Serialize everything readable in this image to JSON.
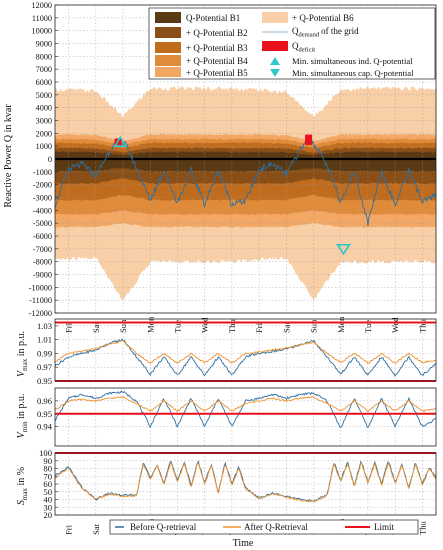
{
  "chart_data": [
    {
      "type": "area",
      "ylabel": "Reactive Power Q in kvar",
      "ylim": [
        -12000,
        12000
      ],
      "yticks": [
        12000,
        11000,
        10000,
        9000,
        8000,
        7000,
        6000,
        5000,
        4000,
        3000,
        2000,
        1000,
        0,
        -1000,
        -2000,
        -3000,
        -4000,
        -5000,
        -6000,
        -7000,
        -8000,
        -9000,
        -10000,
        -11000,
        -12000
      ],
      "ytick_labels": [
        "12000",
        "11000",
        "10000",
        "9000",
        "8000",
        "7000",
        "6000",
        "5000",
        "4000",
        "3000",
        "2000",
        "1000",
        "0",
        "-1000",
        "-2000",
        "-3000",
        "-4000",
        "-5000",
        "-6000",
        "-7000",
        "-8000",
        "-9000",
        "-10000",
        "-11000",
        "-12000"
      ],
      "xlim": [
        0,
        14
      ],
      "x_days": [
        "Fri",
        "Sat",
        "Sun",
        "Mon",
        "Tue",
        "Wed",
        "Thu",
        "Fri",
        "Sat",
        "Sun",
        "Mon",
        "Tue",
        "Wed",
        "Thu",
        "Fri"
      ],
      "grid": true,
      "legend_position": "top-right",
      "legend": [
        "Q-Potential B1",
        "+ Q-Potential B2",
        "+ Q-Potential B3",
        "+ Q-Potential B4",
        "+ Q-Potential B5",
        "+ Q-Potential B6",
        "Q",
        "demand",
        "of the grid",
        "Q",
        "deficit",
        "Min. simultaneous ind. Q-potential",
        "Min. simultaneous cap. Q-potential"
      ],
      "colors": {
        "b1": "#5a3a14",
        "b2": "#8a4f17",
        "b3": "#c06c1e",
        "b4": "#e08b3a",
        "b5": "#f2a764",
        "b6": "#f8cfa6",
        "demand": "#2f6f9f",
        "deficit": "#e8101a",
        "marker": "#2ec8c8"
      },
      "series": [
        {
          "name": "Q-Potential B1",
          "upper": [
            550,
            530,
            300,
            550,
            550,
            550,
            550,
            550,
            520,
            300,
            550,
            550,
            550,
            550
          ],
          "lower": [
            -950,
            -950,
            -700,
            -950,
            -950,
            -950,
            -950,
            -950,
            -950,
            -700,
            -950,
            -950,
            -950,
            -950
          ]
        },
        {
          "name": "+ Q-Potential B2",
          "upper": [
            850,
            820,
            500,
            850,
            850,
            850,
            850,
            850,
            820,
            500,
            850,
            850,
            850,
            850
          ],
          "lower": [
            -1900,
            -1900,
            -1500,
            -1900,
            -1900,
            -1900,
            -1900,
            -1900,
            -1900,
            -1500,
            -1900,
            -1900,
            -1900,
            -1900
          ]
        },
        {
          "name": "+ Q-Potential B3",
          "upper": [
            1250,
            1200,
            850,
            1250,
            1250,
            1250,
            1250,
            1250,
            1200,
            850,
            1250,
            1250,
            1250,
            1250
          ],
          "lower": [
            -3200,
            -3200,
            -2800,
            -3200,
            -3200,
            -3200,
            -3200,
            -3200,
            -3200,
            -2800,
            -3200,
            -3200,
            -3200,
            -3200
          ]
        },
        {
          "name": "+ Q-Potential B4",
          "upper": [
            1550,
            1500,
            1100,
            1550,
            1550,
            1550,
            1550,
            1550,
            1500,
            1100,
            1550,
            1550,
            1550,
            1550
          ],
          "lower": [
            -4300,
            -4300,
            -4000,
            -4300,
            -4300,
            -4300,
            -4300,
            -4300,
            -4300,
            -4000,
            -4300,
            -4300,
            -4300,
            -4300
          ]
        },
        {
          "name": "+ Q-Potential B5",
          "upper": [
            1900,
            1850,
            1400,
            1900,
            1900,
            1900,
            1900,
            1900,
            1850,
            1400,
            1900,
            1900,
            1900,
            1900
          ],
          "lower": [
            -5300,
            -5300,
            -5000,
            -5300,
            -5300,
            -5300,
            -5300,
            -5300,
            -5300,
            -5000,
            -5300,
            -5300,
            -5300,
            -5300
          ]
        },
        {
          "name": "+ Q-Potential B6",
          "upper": [
            5400,
            5300,
            3300,
            5500,
            5500,
            5500,
            5500,
            5400,
            5200,
            3300,
            5400,
            5500,
            5500,
            5500
          ],
          "lower": [
            -7800,
            -7700,
            -11000,
            -8000,
            -8000,
            -8000,
            -8000,
            -7800,
            -7700,
            -11000,
            -8000,
            -8000,
            -8000,
            -8000
          ]
        },
        {
          "name": "Qdemand of the grid",
          "x": [
            0,
            0.5,
            1,
            1.5,
            2,
            2.3,
            2.6,
            3,
            3.5,
            4,
            4.5,
            5,
            5.5,
            6,
            6.5,
            7,
            7.5,
            8,
            8.5,
            9,
            9.3,
            9.6,
            10,
            10.5,
            11,
            11.5,
            12,
            12.5,
            13,
            13.5,
            14
          ],
          "values": [
            -3600,
            -800,
            -400,
            -1300,
            600,
            1400,
            1100,
            -700,
            -3200,
            -900,
            -3400,
            -900,
            -3500,
            -900,
            -3500,
            -3300,
            -800,
            -400,
            -1200,
            700,
            1500,
            1000,
            -600,
            -3300,
            -900,
            -5000,
            -900,
            -3600,
            -800,
            -3400,
            -2800
          ]
        },
        {
          "name": "Qdeficit",
          "x": [
            2.3,
            9.3
          ],
          "values": [
            1600,
            1900
          ]
        },
        {
          "name": "Min. simultaneous ind. Q-potential",
          "x": [
            2.4
          ],
          "values": [
            1300
          ]
        },
        {
          "name": "Min. simultaneous cap. Q-potential",
          "x": [
            10.6
          ],
          "values": [
            -7000
          ]
        }
      ]
    },
    {
      "type": "line",
      "ylabel": "V",
      "ylabel_sub": "max",
      "ylabel_unit": " in p.u.",
      "ylim": [
        0.95,
        1.04
      ],
      "yticks": [
        0.95,
        0.97,
        0.99,
        1.01,
        1.03
      ],
      "ytick_labels": [
        "0.95",
        "0.97",
        "0.99",
        "1.01",
        "1.03"
      ],
      "limits": [
        1.035,
        0.95
      ],
      "grid": true,
      "series": [
        {
          "name": "Before Q-retrieval",
          "x": [
            0,
            0.5,
            1,
            1.5,
            2,
            2.5,
            3,
            3.5,
            4,
            4.5,
            5,
            5.5,
            6,
            6.5,
            7,
            7.5,
            8,
            8.5,
            9,
            9.5,
            10,
            10.5,
            11,
            11.5,
            12,
            12.5,
            13,
            13.5,
            14
          ],
          "values": [
            0.972,
            0.985,
            0.99,
            0.995,
            1.005,
            1.01,
            0.985,
            0.96,
            0.985,
            0.958,
            0.985,
            0.958,
            0.985,
            0.958,
            0.985,
            0.99,
            0.993,
            0.996,
            1.003,
            1.008,
            0.985,
            0.96,
            0.985,
            0.958,
            0.985,
            0.958,
            0.985,
            0.958,
            0.975
          ]
        },
        {
          "name": "After Q-Retrieval",
          "x": [
            0,
            0.5,
            1,
            1.5,
            2,
            2.5,
            3,
            3.5,
            4,
            4.5,
            5,
            5.5,
            6,
            6.5,
            7,
            7.5,
            8,
            8.5,
            9,
            9.5,
            10,
            10.5,
            11,
            11.5,
            12,
            12.5,
            13,
            13.5,
            14
          ],
          "values": [
            0.978,
            0.99,
            0.993,
            0.997,
            1.004,
            1.008,
            0.99,
            0.976,
            0.99,
            0.976,
            0.99,
            0.976,
            0.99,
            0.976,
            0.99,
            0.992,
            0.995,
            0.998,
            1.002,
            1.006,
            0.99,
            0.977,
            0.99,
            0.976,
            0.99,
            0.976,
            0.99,
            0.977,
            0.98
          ]
        }
      ]
    },
    {
      "type": "line",
      "ylabel": "V",
      "ylabel_sub": "min",
      "ylabel_unit": " in p.u.",
      "ylim": [
        0.925,
        0.97
      ],
      "yticks": [
        0.94,
        0.95,
        0.96
      ],
      "ytick_labels": [
        "0.94",
        "0.95",
        "0.96"
      ],
      "limits": [
        0.95
      ],
      "grid": true,
      "series": [
        {
          "name": "Before Q-retrieval",
          "x": [
            0,
            0.5,
            1,
            1.5,
            2,
            2.5,
            3,
            3.5,
            4,
            4.5,
            5,
            5.5,
            6,
            6.5,
            7,
            7.5,
            8,
            8.5,
            9,
            9.5,
            10,
            10.5,
            11,
            11.5,
            12,
            12.5,
            13,
            13.5,
            14
          ],
          "values": [
            0.945,
            0.962,
            0.965,
            0.962,
            0.966,
            0.967,
            0.96,
            0.94,
            0.962,
            0.94,
            0.962,
            0.94,
            0.962,
            0.94,
            0.96,
            0.962,
            0.965,
            0.962,
            0.965,
            0.966,
            0.96,
            0.939,
            0.962,
            0.939,
            0.962,
            0.94,
            0.962,
            0.94,
            0.946
          ]
        },
        {
          "name": "After Q-Retrieval",
          "x": [
            0,
            0.5,
            1,
            1.5,
            2,
            2.5,
            3,
            3.5,
            4,
            4.5,
            5,
            5.5,
            6,
            6.5,
            7,
            7.5,
            8,
            8.5,
            9,
            9.5,
            10,
            10.5,
            11,
            11.5,
            12,
            12.5,
            13,
            13.5,
            14
          ],
          "values": [
            0.953,
            0.96,
            0.961,
            0.96,
            0.962,
            0.963,
            0.958,
            0.952,
            0.96,
            0.952,
            0.96,
            0.952,
            0.96,
            0.952,
            0.958,
            0.96,
            0.962,
            0.96,
            0.962,
            0.963,
            0.958,
            0.952,
            0.96,
            0.952,
            0.96,
            0.952,
            0.96,
            0.952,
            0.954
          ]
        }
      ]
    },
    {
      "type": "line",
      "ylabel": "S",
      "ylabel_sub": "max",
      "ylabel_unit": " in %",
      "ylim": [
        20,
        100
      ],
      "yticks": [
        20,
        30,
        40,
        50,
        60,
        70,
        80,
        90,
        100
      ],
      "ytick_labels": [
        "20",
        "30",
        "40",
        "50",
        "60",
        "70",
        "80",
        "90",
        "100"
      ],
      "limits": [
        100
      ],
      "xlabel": "Time",
      "x_days": [
        "Fri",
        "Sat",
        "Sun",
        "Mon",
        "Tue",
        "Wed",
        "Thu",
        "Fri",
        "Sat",
        "Sun",
        "Mon",
        "Tue",
        "Wed",
        "Thu",
        "Fri"
      ],
      "grid": true,
      "legend_position": "bottom-center",
      "series": [
        {
          "name": "Before Q-retrieval",
          "x": [
            0,
            0.5,
            1,
            1.5,
            2,
            2.5,
            3,
            3.25,
            3.5,
            3.75,
            4,
            4.25,
            4.5,
            4.75,
            5,
            5.25,
            5.5,
            5.75,
            6,
            6.25,
            6.5,
            6.75,
            7,
            7.5,
            8,
            8.5,
            9,
            9.5,
            10,
            10.25,
            10.5,
            10.75,
            11,
            11.25,
            11.5,
            11.75,
            12,
            12.25,
            12.5,
            12.75,
            13,
            13.25,
            13.5,
            13.75,
            14
          ],
          "values": [
            70,
            82,
            55,
            40,
            48,
            45,
            46,
            88,
            68,
            86,
            60,
            90,
            65,
            88,
            58,
            90,
            62,
            86,
            48,
            88,
            60,
            82,
            55,
            42,
            48,
            44,
            40,
            38,
            46,
            88,
            65,
            88,
            58,
            90,
            62,
            88,
            60,
            90,
            62,
            86,
            55,
            88,
            60,
            82,
            68
          ]
        },
        {
          "name": "After Q-Retrieval",
          "x": [
            0,
            0.5,
            1,
            1.5,
            2,
            2.5,
            3,
            3.25,
            3.5,
            3.75,
            4,
            4.25,
            4.5,
            4.75,
            5,
            5.25,
            5.5,
            5.75,
            6,
            6.25,
            6.5,
            6.75,
            7,
            7.5,
            8,
            8.5,
            9,
            9.5,
            10,
            10.25,
            10.5,
            10.75,
            11,
            11.25,
            11.5,
            11.75,
            12,
            12.25,
            12.5,
            12.75,
            13,
            13.25,
            13.5,
            13.75,
            14
          ],
          "values": [
            68,
            80,
            54,
            40,
            47,
            44,
            45,
            86,
            66,
            84,
            58,
            88,
            63,
            86,
            56,
            88,
            60,
            84,
            47,
            86,
            58,
            80,
            54,
            41,
            47,
            43,
            39,
            37,
            45,
            86,
            63,
            86,
            56,
            88,
            60,
            86,
            58,
            88,
            60,
            84,
            54,
            86,
            58,
            80,
            66
          ]
        },
        {
          "name": "Limit",
          "values": [
            100
          ]
        }
      ],
      "legend": [
        "Before Q-retrieval",
        "After Q-Retrieval",
        "Limit"
      ]
    }
  ]
}
